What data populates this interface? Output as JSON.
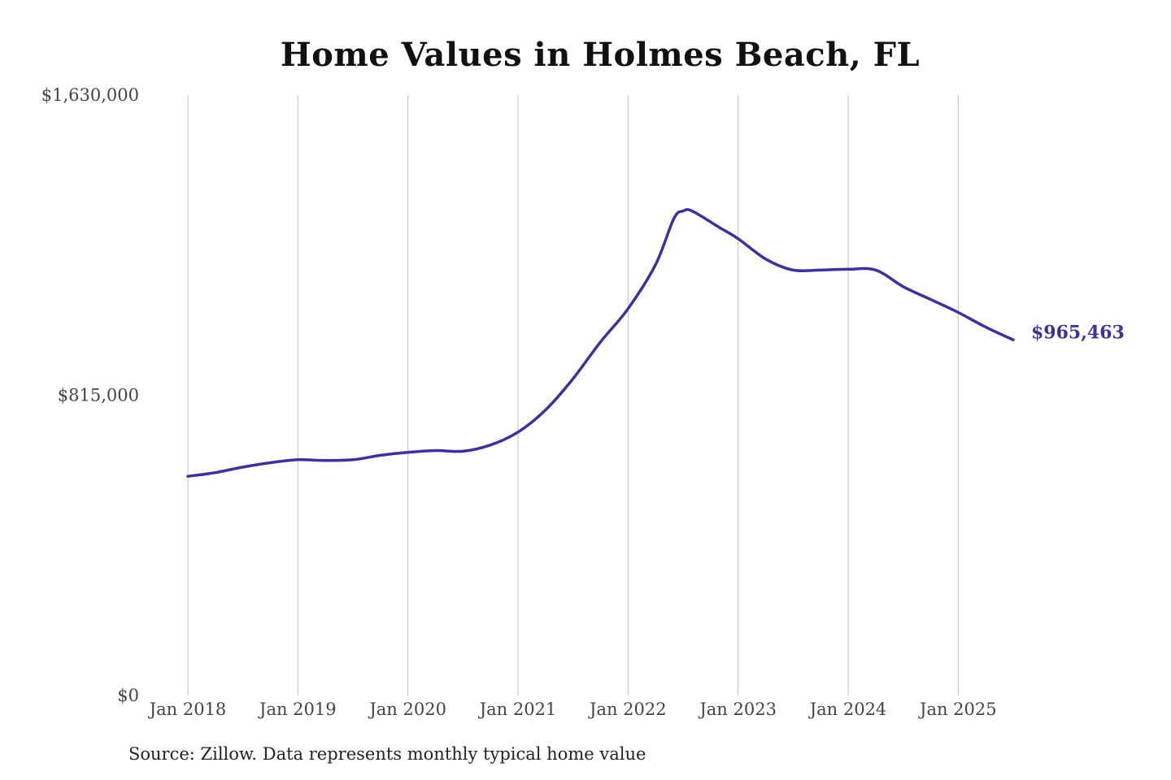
{
  "chart_data": {
    "type": "line",
    "title": "Home Values in Holmes Beach, FL",
    "source": "Source: Zillow. Data represents monthly typical home value",
    "xlabel": "",
    "ylabel": "",
    "xlim": [
      "2018-01",
      "2025-07"
    ],
    "ylim": [
      0,
      1630000
    ],
    "y_ticks": [
      0,
      815000,
      1630000
    ],
    "y_tick_labels": [
      "$0",
      "$815,000",
      "$1,630,000"
    ],
    "x_ticks": [
      "2018-01",
      "2019-01",
      "2020-01",
      "2021-01",
      "2022-01",
      "2023-01",
      "2024-01",
      "2025-01"
    ],
    "x_tick_labels": [
      "Jan 2018",
      "Jan 2019",
      "Jan 2020",
      "Jan 2021",
      "Jan 2022",
      "Jan 2023",
      "Jan 2024",
      "Jan 2025"
    ],
    "grid": "vertical",
    "end_label": "$965,463",
    "series": [
      {
        "color": "#3a3399",
        "points": [
          [
            "2018-01",
            595000
          ],
          [
            "2018-04",
            605000
          ],
          [
            "2018-07",
            620000
          ],
          [
            "2018-10",
            632000
          ],
          [
            "2019-01",
            640000
          ],
          [
            "2019-04",
            638000
          ],
          [
            "2019-07",
            640000
          ],
          [
            "2019-10",
            652000
          ],
          [
            "2020-01",
            660000
          ],
          [
            "2020-04",
            665000
          ],
          [
            "2020-07",
            663000
          ],
          [
            "2020-10",
            680000
          ],
          [
            "2021-01",
            715000
          ],
          [
            "2021-04",
            775000
          ],
          [
            "2021-07",
            860000
          ],
          [
            "2021-10",
            960000
          ],
          [
            "2022-01",
            1050000
          ],
          [
            "2022-04",
            1170000
          ],
          [
            "2022-06",
            1295000
          ],
          [
            "2022-07",
            1315000
          ],
          [
            "2022-08",
            1315000
          ],
          [
            "2022-11",
            1270000
          ],
          [
            "2023-01",
            1240000
          ],
          [
            "2023-04",
            1185000
          ],
          [
            "2023-07",
            1155000
          ],
          [
            "2023-10",
            1155000
          ],
          [
            "2024-01",
            1157000
          ],
          [
            "2024-04",
            1155000
          ],
          [
            "2024-07",
            1110000
          ],
          [
            "2024-10",
            1075000
          ],
          [
            "2025-01",
            1040000
          ],
          [
            "2025-04",
            1000000
          ],
          [
            "2025-07",
            965463
          ]
        ]
      }
    ]
  }
}
